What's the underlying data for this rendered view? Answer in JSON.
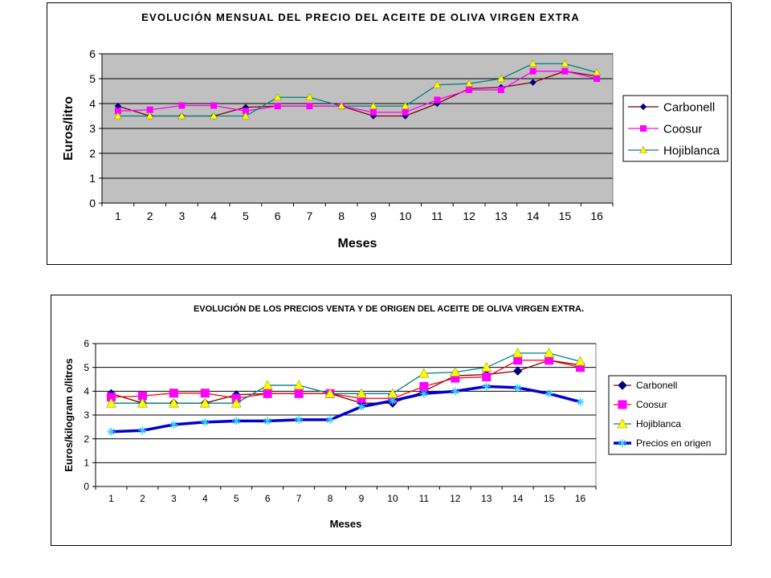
{
  "chart_data": [
    {
      "type": "line",
      "title": "EVOLUCIÓN MENSUAL DEL PRECIO DEL ACEITE DE OLIVA VIRGEN EXTRA",
      "xlabel": "Meses",
      "ylabel": "Euros/litro",
      "categories": [
        "1",
        "2",
        "3",
        "4",
        "5",
        "6",
        "7",
        "8",
        "9",
        "10",
        "11",
        "12",
        "13",
        "14",
        "15",
        "16"
      ],
      "yticks": [
        "0",
        "1",
        "2",
        "3",
        "4",
        "5",
        "6"
      ],
      "ylim": [
        0,
        6
      ],
      "grid": true,
      "plot_background": "#c0c0c0",
      "legend_position": "right",
      "series": [
        {
          "name": "Carbonell",
          "color": "#800000",
          "marker": "diamond",
          "marker_color": "#000080",
          "values": [
            3.9,
            3.5,
            3.5,
            3.5,
            3.85,
            3.9,
            3.9,
            3.9,
            3.5,
            3.5,
            4.0,
            4.6,
            4.65,
            4.85,
            5.3,
            5.1
          ]
        },
        {
          "name": "Coosur",
          "color": "#ff00ff",
          "marker": "square",
          "marker_color": "#ff00ff",
          "values": [
            3.7,
            3.75,
            3.92,
            3.92,
            3.7,
            3.9,
            3.9,
            3.9,
            3.65,
            3.65,
            4.15,
            4.55,
            4.55,
            5.3,
            5.3,
            5.0
          ]
        },
        {
          "name": "Hojiblanca",
          "color": "#008080",
          "marker": "triangle",
          "marker_color": "#ffff00",
          "values": [
            3.5,
            3.5,
            3.5,
            3.5,
            3.5,
            4.25,
            4.25,
            3.9,
            3.9,
            3.9,
            4.75,
            4.8,
            5.0,
            5.6,
            5.6,
            5.25
          ]
        }
      ]
    },
    {
      "type": "line",
      "title": "EVOLUCIÓN DE LOS PRECIOS VENTA Y DE ORIGEN DEL ACEITE DE OLIVA VIRGEN EXTRA.",
      "xlabel": "Meses",
      "ylabel": "Euros/kilogram o/litros",
      "categories": [
        "1",
        "2",
        "3",
        "4",
        "5",
        "6",
        "7",
        "8",
        "9",
        "10",
        "11",
        "12",
        "13",
        "14",
        "15",
        "16"
      ],
      "yticks": [
        "0",
        "1",
        "2",
        "3",
        "4",
        "5",
        "6"
      ],
      "ylim": [
        0,
        6
      ],
      "grid": true,
      "plot_background": "#ffffff",
      "legend_position": "right",
      "series": [
        {
          "name": "Carbonell",
          "color": "#800000",
          "marker": "diamond",
          "marker_color": "#000080",
          "values": [
            3.9,
            3.5,
            3.5,
            3.5,
            3.85,
            3.9,
            3.9,
            3.9,
            3.5,
            3.5,
            4.0,
            4.65,
            4.7,
            4.85,
            5.3,
            5.1
          ]
        },
        {
          "name": "Coosur",
          "color": "#ff0000",
          "marker": "square",
          "marker_color": "#ff00ff",
          "values": [
            3.75,
            3.8,
            3.92,
            3.92,
            3.7,
            3.9,
            3.9,
            3.9,
            3.7,
            3.7,
            4.2,
            4.55,
            4.6,
            5.3,
            5.3,
            5.0
          ]
        },
        {
          "name": "Hojiblanca",
          "color": "#008080",
          "marker": "triangle",
          "marker_color": "#ffff00",
          "values": [
            3.5,
            3.5,
            3.5,
            3.5,
            3.5,
            4.25,
            4.25,
            3.9,
            3.9,
            3.9,
            4.75,
            4.8,
            5.0,
            5.6,
            5.6,
            5.25
          ]
        },
        {
          "name": "Precios en origen",
          "color": "#0000cc",
          "marker": "star",
          "marker_color": "#33ccff",
          "values": [
            2.3,
            2.35,
            2.6,
            2.7,
            2.75,
            2.75,
            2.8,
            2.8,
            3.35,
            3.6,
            3.9,
            4.0,
            4.2,
            4.15,
            3.9,
            3.55
          ]
        }
      ]
    }
  ]
}
